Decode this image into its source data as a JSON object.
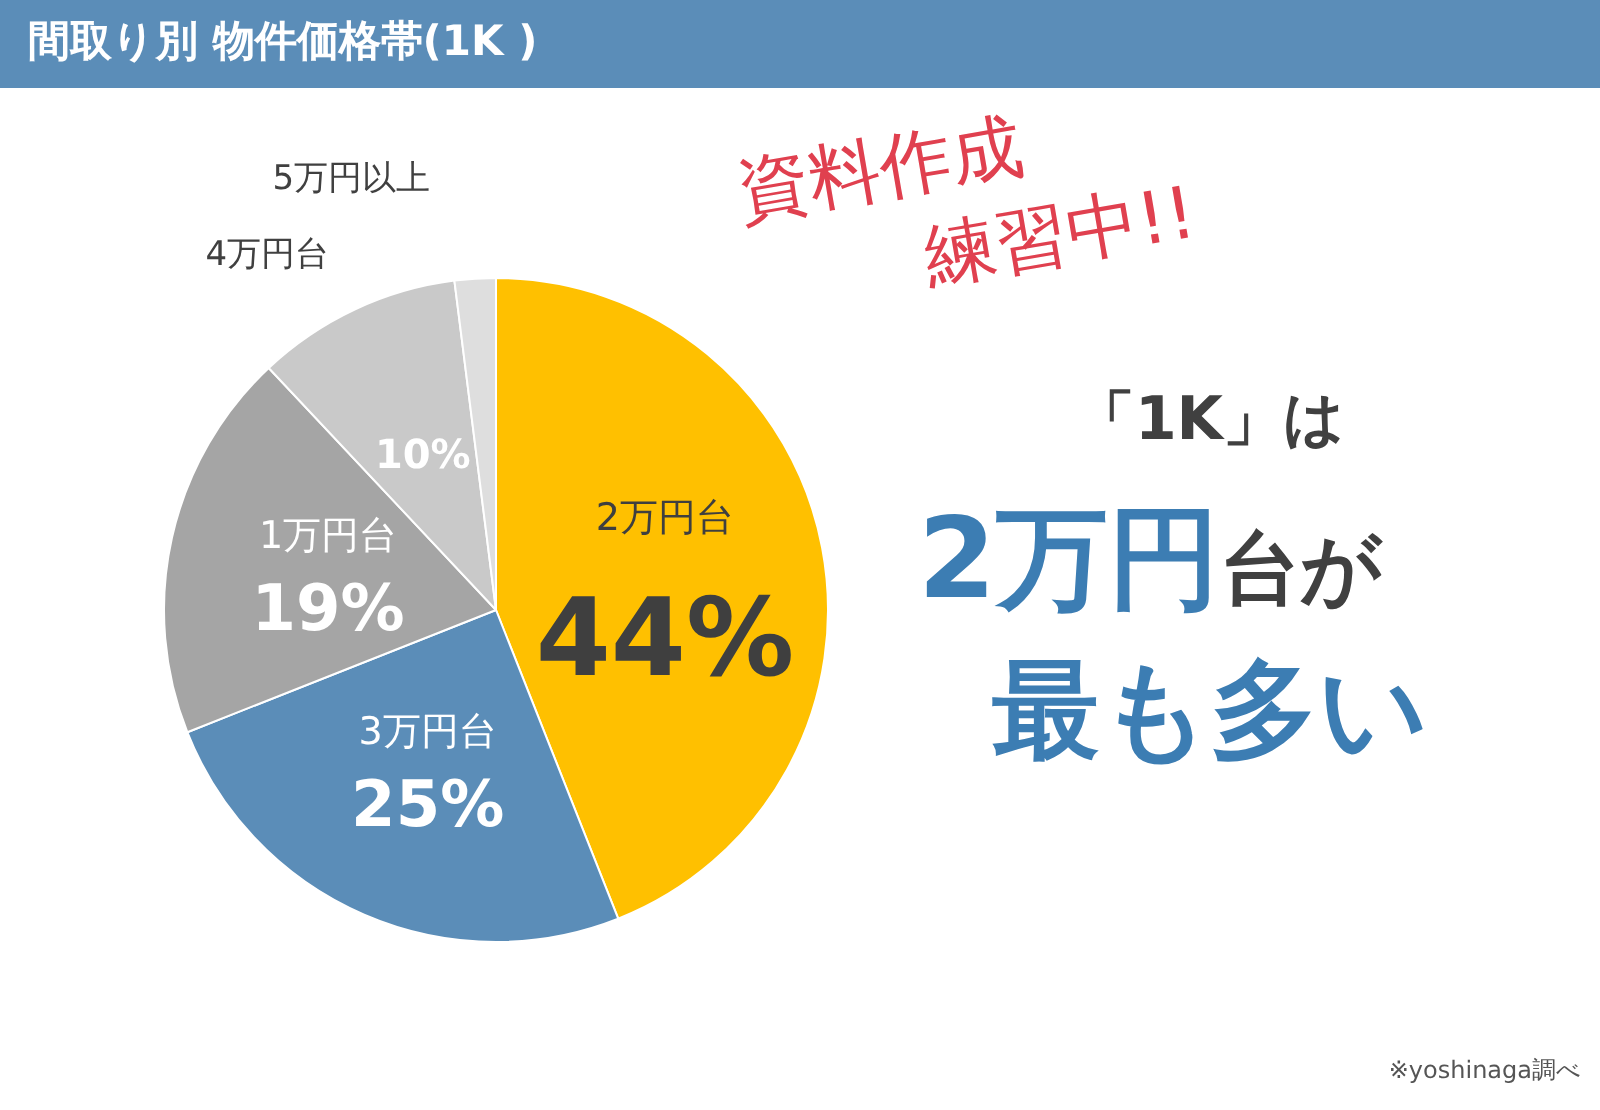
{
  "chart_data": {
    "type": "pie",
    "title": "間取り別 物件価格帯(1K )",
    "categories": [
      "2万円台",
      "3万円台",
      "1万円台",
      "4万円台",
      "5万円以上"
    ],
    "values": [
      44,
      25,
      19,
      10,
      2
    ],
    "value_labels": [
      "44%",
      "25%",
      "19%",
      "10%",
      null
    ],
    "colors": [
      "#ffc000",
      "#5b8db8",
      "#a5a5a5",
      "#c9c9c9",
      "#dedede"
    ],
    "legend": false,
    "annotations": [
      "「1K」は",
      "2万円",
      "台が",
      "最も多い",
      "資料作成",
      "練習中!!",
      "※yoshinaga調べ"
    ]
  }
}
